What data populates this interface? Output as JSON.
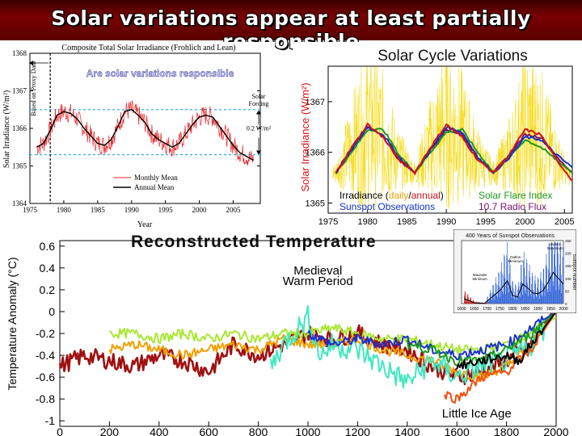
{
  "slide": {
    "title": "Solar variations appear at least partially responsible"
  },
  "chart_data": [
    {
      "type": "line",
      "title": "Composite Total Solar Irradiance (Frohlich and Lean)",
      "overlay_text": "Are solar variations responsible",
      "xlabel": "Year",
      "ylabel": "Solar Irradiance (W/m²)",
      "xlim": [
        1975,
        2009
      ],
      "ylim": [
        1364,
        1368
      ],
      "x_ticks": [
        "1975",
        "1980",
        "1985",
        "1990",
        "1995",
        "2000",
        "2005"
      ],
      "y_ticks": [
        "1364",
        "1365",
        "1366",
        "1367",
        "1368"
      ],
      "annotations": [
        "Based on Proxy Data",
        "Solar Forcing",
        "0.2 W/m²"
      ],
      "dashed_levels": [
        1366.5,
        1365.3
      ],
      "proxy_divider_year": 1978,
      "legend": [
        "Monthly Mean",
        "Annual Mean"
      ],
      "colors": {
        "monthly": "#e8262a",
        "annual": "#000000",
        "dashed": "#33b8e6"
      },
      "series": [
        {
          "name": "Annual Mean",
          "x": [
            1976,
            1977,
            1978,
            1979,
            1980,
            1981,
            1982,
            1983,
            1984,
            1985,
            1986,
            1987,
            1988,
            1989,
            1990,
            1991,
            1992,
            1993,
            1994,
            1995,
            1996,
            1997,
            1998,
            1999,
            2000,
            2001,
            2002,
            2003,
            2004,
            2005,
            2006,
            2007,
            2008
          ],
          "values": [
            1365.5,
            1365.6,
            1365.95,
            1366.35,
            1366.45,
            1366.4,
            1366.25,
            1366.0,
            1365.8,
            1365.6,
            1365.55,
            1365.7,
            1366.05,
            1366.45,
            1366.5,
            1366.35,
            1366.15,
            1365.85,
            1365.7,
            1365.6,
            1365.5,
            1365.6,
            1365.85,
            1366.1,
            1366.3,
            1366.35,
            1366.3,
            1366.05,
            1365.8,
            1365.55,
            1365.35,
            1365.25,
            1365.15
          ]
        }
      ]
    },
    {
      "type": "line",
      "title": "Solar Cycle Variations",
      "ylabel": "Solar Irradiance (W/m²)",
      "xlim": [
        1975,
        2006
      ],
      "ylim": [
        1364.8,
        1367.7
      ],
      "x_ticks": [
        "1975",
        "1980",
        "1985",
        "1990",
        "1995",
        "2000",
        "2005"
      ],
      "y_ticks": [
        "1365",
        "1366",
        "1367"
      ],
      "legend": [
        {
          "parts": [
            "Irradiance (",
            "daily",
            "/",
            "annual",
            ")"
          ],
          "colors": [
            "#000000",
            "#e8a000",
            "#000000",
            "#d81010",
            "#000000"
          ]
        },
        {
          "text": "Solar Flare Index",
          "color": "#1a9a1a"
        },
        {
          "text": "Sunspot Observations",
          "color": "#1030d0"
        },
        {
          "text": "10.7 Radio Flux",
          "color": "#7a1070"
        }
      ],
      "series": [
        {
          "name": "annual",
          "color": "#d81010",
          "x": [
            1976,
            1978,
            1980,
            1982,
            1984,
            1986,
            1988,
            1990,
            1992,
            1994,
            1996,
            1998,
            2000,
            2002,
            2004,
            2006
          ],
          "values": [
            1365.6,
            1366.1,
            1366.55,
            1366.3,
            1365.85,
            1365.6,
            1366.1,
            1366.55,
            1366.3,
            1365.85,
            1365.6,
            1365.95,
            1366.45,
            1366.35,
            1365.85,
            1365.45
          ]
        },
        {
          "name": "Solar Flare Index",
          "color": "#1a9a1a",
          "x": [
            1976,
            1978,
            1980,
            1982,
            1984,
            1986,
            1988,
            1990,
            1992,
            1994,
            1996,
            1998,
            2000,
            2002,
            2004,
            2006
          ],
          "values": [
            1365.6,
            1366.0,
            1366.45,
            1366.45,
            1365.95,
            1365.6,
            1366.0,
            1366.4,
            1366.45,
            1366.0,
            1365.6,
            1365.9,
            1366.25,
            1366.1,
            1365.85,
            1365.6
          ]
        },
        {
          "name": "Sunspot Observations",
          "color": "#1030d0",
          "x": [
            1976,
            1978,
            1980,
            1982,
            1984,
            1986,
            1988,
            1990,
            1992,
            1994,
            1996,
            1998,
            2000,
            2002,
            2004,
            2006
          ],
          "values": [
            1365.6,
            1366.05,
            1366.5,
            1366.35,
            1365.9,
            1365.6,
            1366.05,
            1366.5,
            1366.4,
            1365.9,
            1365.6,
            1365.9,
            1366.3,
            1366.25,
            1365.95,
            1365.7
          ]
        },
        {
          "name": "10.7 Radio Flux",
          "color": "#7a1070",
          "x": [
            1976,
            1978,
            1980,
            1982,
            1984,
            1986,
            1988,
            1990,
            1992,
            1994,
            1996,
            1998,
            2000,
            2002,
            2004,
            2006
          ],
          "values": [
            1365.6,
            1366.1,
            1366.5,
            1366.3,
            1365.85,
            1365.6,
            1366.05,
            1366.45,
            1366.35,
            1365.9,
            1365.6,
            1365.95,
            1366.35,
            1366.3,
            1365.9,
            1365.6
          ]
        }
      ]
    },
    {
      "type": "line",
      "title": "Reconstructed Temperature",
      "ylabel": "Temperature Anomaly (°C)",
      "xlim": [
        0,
        2000
      ],
      "ylim": [
        -1.05,
        0.65
      ],
      "x_ticks": [
        "0",
        "200",
        "400",
        "600",
        "800",
        "1000",
        "1200",
        "1400",
        "1600",
        "1800",
        "2000"
      ],
      "y_ticks": [
        "0.6",
        "0.4",
        "0.2",
        "0",
        "-0.2",
        "-0.4",
        "-0.6",
        "-0.8",
        "-1"
      ],
      "annotations": [
        "Medieval Warm Period",
        "Little Ice Age"
      ],
      "series": [
        {
          "name": "",
          "color": "#a01010",
          "x": [
            0,
            100,
            200,
            300,
            400,
            500,
            600,
            700,
            800,
            900,
            1000,
            1100,
            1200,
            1300,
            1400,
            1500,
            1600,
            1700,
            1800,
            1900,
            2000
          ],
          "values": [
            -0.5,
            -0.4,
            -0.45,
            -0.5,
            -0.4,
            -0.45,
            -0.55,
            -0.3,
            -0.4,
            -0.3,
            -0.2,
            -0.25,
            -0.2,
            -0.3,
            -0.35,
            -0.5,
            -0.6,
            -0.55,
            -0.45,
            -0.3,
            0.05
          ]
        },
        {
          "name": "",
          "color": "#a8e830",
          "x": [
            200,
            300,
            400,
            500,
            600,
            700,
            800,
            900,
            1000,
            1100,
            1200,
            1300,
            1400,
            1500,
            1600,
            1700,
            1800,
            1900,
            2000
          ],
          "values": [
            -0.2,
            -0.2,
            -0.25,
            -0.2,
            -0.25,
            -0.2,
            -0.25,
            -0.2,
            -0.2,
            -0.15,
            -0.2,
            -0.25,
            -0.25,
            -0.3,
            -0.35,
            -0.35,
            -0.3,
            -0.2,
            -0.05
          ]
        },
        {
          "name": "",
          "color": "#f0a000",
          "x": [
            200,
            300,
            400,
            500,
            600,
            700,
            800,
            900,
            1000,
            1100,
            1200,
            1300,
            1400,
            1500,
            1600,
            1700,
            1800,
            1900,
            2000
          ],
          "values": [
            -0.35,
            -0.3,
            -0.35,
            -0.4,
            -0.35,
            -0.3,
            -0.35,
            -0.25,
            -0.3,
            -0.3,
            -0.25,
            -0.35,
            -0.4,
            -0.45,
            -0.55,
            -0.6,
            -0.5,
            -0.3,
            0.0
          ]
        },
        {
          "name": "",
          "color": "#40e8c0",
          "x": [
            850,
            900,
            1000,
            1050,
            1100,
            1200,
            1300,
            1400,
            1500,
            1600,
            1700,
            1800,
            1900,
            2000
          ],
          "values": [
            -0.5,
            -0.3,
            -0.05,
            -0.4,
            -0.3,
            -0.35,
            -0.5,
            -0.65,
            -0.45,
            -0.6,
            -0.5,
            -0.45,
            -0.3,
            0.0
          ]
        },
        {
          "name": "",
          "color": "#1a30d0",
          "x": [
            1000,
            1100,
            1200,
            1300,
            1400,
            1500,
            1600,
            1700,
            1800,
            1900,
            2000
          ],
          "values": [
            -0.2,
            -0.3,
            -0.25,
            -0.3,
            -0.25,
            -0.35,
            -0.4,
            -0.35,
            -0.3,
            -0.15,
            0.0
          ]
        },
        {
          "name": "",
          "color": "#1a9a1a",
          "x": [
            1400,
            1500,
            1600,
            1700,
            1800,
            1900,
            2000
          ],
          "values": [
            -0.3,
            -0.35,
            -0.45,
            -0.45,
            -0.35,
            -0.2,
            0.0
          ]
        },
        {
          "name": "",
          "color": "#f05010",
          "x": [
            1550,
            1600,
            1650,
            1700,
            1800,
            1900,
            2000
          ],
          "values": [
            -0.75,
            -0.8,
            -0.7,
            -0.6,
            -0.55,
            -0.35,
            0.0
          ]
        },
        {
          "name": "",
          "color": "#000000",
          "x": [
            1600,
            1700,
            1800,
            1850,
            1900,
            1950,
            2000
          ],
          "values": [
            -0.5,
            -0.45,
            -0.4,
            -0.45,
            -0.3,
            -0.15,
            0.0
          ]
        }
      ]
    },
    {
      "type": "bar",
      "title": "400 Years of Sunspot Observations",
      "ylabel": "Sunspot Number",
      "xlim": [
        1600,
        2000
      ],
      "ylim": [
        0,
        250
      ],
      "x_ticks": [
        "1600",
        "1650",
        "1700",
        "1750",
        "1800",
        "1850",
        "1900",
        "1950",
        "2000"
      ],
      "y_ticks": [
        "0",
        "50",
        "100",
        "150",
        "200",
        "250"
      ],
      "annotations": [
        "Maunder Minimum",
        "Dalton Minimum",
        "Modern Maximum"
      ],
      "x": [
        1610,
        1650,
        1690,
        1720,
        1750,
        1780,
        1800,
        1820,
        1840,
        1860,
        1880,
        1900,
        1920,
        1940,
        1960,
        1980,
        2000
      ],
      "values": [
        30,
        5,
        2,
        40,
        80,
        140,
        50,
        40,
        120,
        95,
        65,
        60,
        80,
        130,
        190,
        155,
        120
      ],
      "colors": {
        "bars": "#3a6ad8",
        "smooth": "#000000",
        "early": "#c82020"
      }
    }
  ]
}
